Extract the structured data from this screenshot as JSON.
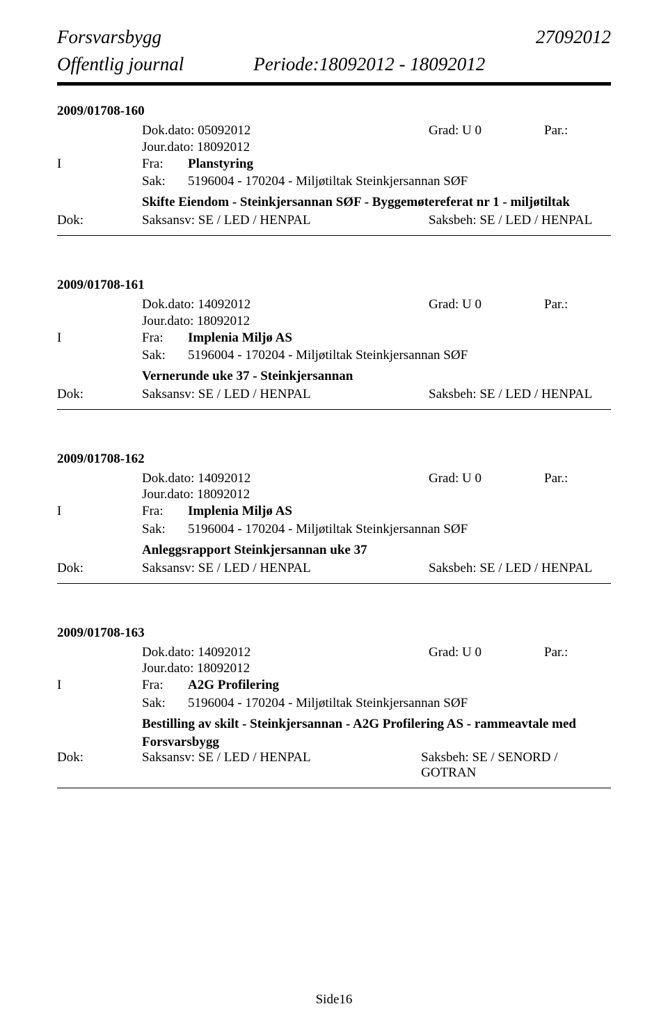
{
  "header": {
    "org": "Forsvarsbygg",
    "date_right": "27092012",
    "journal_label": "Offentlig journal",
    "periode": "Periode:18092012 - 18092012"
  },
  "entries": [
    {
      "case_id": "2009/01708-160",
      "dok_dato_label": "Dok.dato:",
      "dok_dato": "05092012",
      "grad_label": "Grad:",
      "grad": "U 0",
      "par_label": "Par.:",
      "par": "",
      "jour_label": "Jour.dato:",
      "jour_dato": "18092012",
      "io": "I",
      "fra_label": "Fra:",
      "fra": "Planstyring",
      "sak_label": "Sak:",
      "sak": "5196004 - 170204 - Miljøtiltak Steinkjersannan SØF",
      "subject": "Skifte Eiendom - Steinkjersannan SØF - Byggemøtereferat nr 1 - miljøtiltak",
      "subject2": "",
      "dok_label": "Dok:",
      "saksansv": "Saksansv:  SE / LED / HENPAL",
      "saksbeh": "Saksbeh: SE / LED / HENPAL"
    },
    {
      "case_id": "2009/01708-161",
      "dok_dato_label": "Dok.dato:",
      "dok_dato": "14092012",
      "grad_label": "Grad:",
      "grad": "U 0",
      "par_label": "Par.:",
      "par": "",
      "jour_label": "Jour.dato:",
      "jour_dato": "18092012",
      "io": "I",
      "fra_label": "Fra:",
      "fra": "Implenia Miljø AS",
      "sak_label": "Sak:",
      "sak": "5196004 - 170204 - Miljøtiltak Steinkjersannan SØF",
      "subject": "Vernerunde uke 37 - Steinkjersannan",
      "subject2": "",
      "dok_label": "Dok:",
      "saksansv": "Saksansv:  SE / LED / HENPAL",
      "saksbeh": "Saksbeh: SE / LED / HENPAL"
    },
    {
      "case_id": "2009/01708-162",
      "dok_dato_label": "Dok.dato:",
      "dok_dato": "14092012",
      "grad_label": "Grad:",
      "grad": "U 0",
      "par_label": "Par.:",
      "par": "",
      "jour_label": "Jour.dato:",
      "jour_dato": "18092012",
      "io": "I",
      "fra_label": "Fra:",
      "fra": "Implenia Miljø AS",
      "sak_label": "Sak:",
      "sak": "5196004 - 170204 - Miljøtiltak Steinkjersannan SØF",
      "subject": "Anleggsrapport Steinkjersannan uke 37",
      "subject2": "",
      "dok_label": "Dok:",
      "saksansv": "Saksansv:  SE / LED / HENPAL",
      "saksbeh": "Saksbeh: SE / LED / HENPAL"
    },
    {
      "case_id": "2009/01708-163",
      "dok_dato_label": "Dok.dato:",
      "dok_dato": "14092012",
      "grad_label": "Grad:",
      "grad": "U 0",
      "par_label": "Par.:",
      "par": "",
      "jour_label": "Jour.dato:",
      "jour_dato": "18092012",
      "io": "I",
      "fra_label": "Fra:",
      "fra": "A2G Profilering",
      "sak_label": "Sak:",
      "sak": "5196004 - 170204 - Miljøtiltak Steinkjersannan SØF",
      "subject": "Bestilling av skilt - Steinkjersannan - A2G Profilering AS - rammeavtale med",
      "subject2": "Forsvarsbygg",
      "dok_label": "Dok:",
      "saksansv": "Saksansv:  SE / LED / HENPAL",
      "saksbeh": "Saksbeh: SE / SENORD / GOTRAN"
    }
  ],
  "footer": "Side16"
}
